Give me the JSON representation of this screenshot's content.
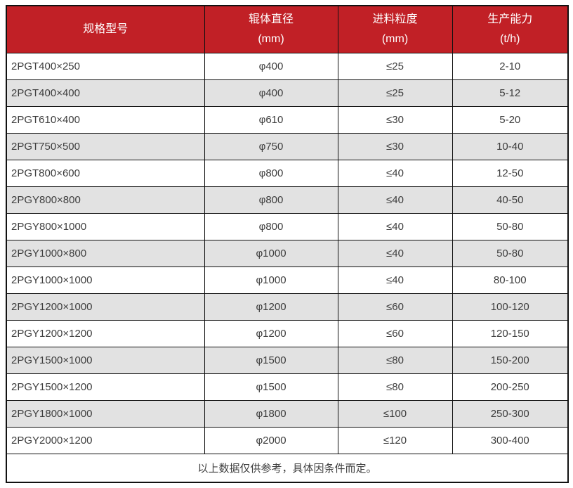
{
  "colors": {
    "header_bg": "#c12026",
    "header_text": "#ffffff",
    "row_bg": "#ffffff",
    "row_alt_bg": "#e2e2e2",
    "border": "#111111",
    "text": "#3d3d3d"
  },
  "chart_data": {
    "type": "table",
    "columns": [
      {
        "label": "规格型号",
        "unit": ""
      },
      {
        "label": "辊体直径",
        "unit": "(mm)"
      },
      {
        "label": "进料粒度",
        "unit": "(mm)"
      },
      {
        "label": "生产能力",
        "unit": "(t/h)"
      }
    ],
    "rows": [
      [
        "2PGT400×250",
        "φ400",
        "≤25",
        "2-10"
      ],
      [
        "2PGT400×400",
        "φ400",
        "≤25",
        "5-12"
      ],
      [
        "2PGT610×400",
        "φ610",
        "≤30",
        "5-20"
      ],
      [
        "2PGT750×500",
        "φ750",
        "≤30",
        "10-40"
      ],
      [
        "2PGT800×600",
        "φ800",
        "≤40",
        "12-50"
      ],
      [
        "2PGY800×800",
        "φ800",
        "≤40",
        "40-50"
      ],
      [
        "2PGY800×1000",
        "φ800",
        "≤40",
        "50-80"
      ],
      [
        "2PGY1000×800",
        "φ1000",
        "≤40",
        "50-80"
      ],
      [
        "2PGY1000×1000",
        "φ1000",
        "≤40",
        "80-100"
      ],
      [
        "2PGY1200×1000",
        "φ1200",
        "≤60",
        "100-120"
      ],
      [
        "2PGY1200×1200",
        "φ1200",
        "≤60",
        "120-150"
      ],
      [
        "2PGY1500×1000",
        "φ1500",
        "≤80",
        "150-200"
      ],
      [
        "2PGY1500×1200",
        "φ1500",
        "≤80",
        "200-250"
      ],
      [
        "2PGY1800×1000",
        "φ1800",
        "≤100",
        "250-300"
      ],
      [
        "2PGY2000×1200",
        "φ2000",
        "≤120",
        "300-400"
      ]
    ],
    "footnote": "以上数据仅供参考，具体因条件而定。"
  }
}
